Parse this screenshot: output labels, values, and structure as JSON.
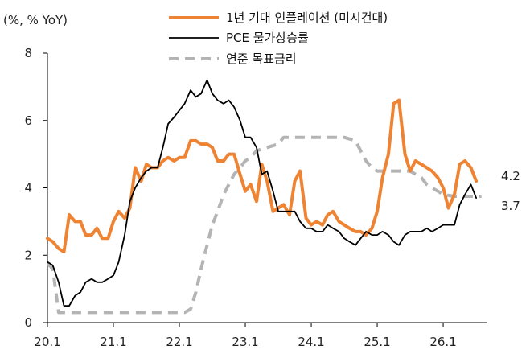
{
  "chart_data": {
    "type": "line",
    "unit_label": "(%, % YoY)",
    "x_tick_labels": [
      "20.1",
      "21.1",
      "22.1",
      "23.1",
      "24.1",
      "25.1",
      "26.1"
    ],
    "x_range": [
      2020.0,
      2026.67
    ],
    "ylim": [
      0,
      8
    ],
    "y_ticks": [
      0,
      2,
      4,
      6,
      8
    ],
    "grid": false,
    "legend_position": "top-center",
    "series": [
      {
        "name": "1년 기대 인플레이션 (미시건대)",
        "color": "#EE8433",
        "style": "solid",
        "width": 4,
        "points": [
          [
            2020.0,
            2.5
          ],
          [
            2020.08,
            2.4
          ],
          [
            2020.17,
            2.2
          ],
          [
            2020.25,
            2.1
          ],
          [
            2020.33,
            3.2
          ],
          [
            2020.42,
            3.0
          ],
          [
            2020.5,
            3.0
          ],
          [
            2020.58,
            2.6
          ],
          [
            2020.67,
            2.6
          ],
          [
            2020.75,
            2.8
          ],
          [
            2020.83,
            2.5
          ],
          [
            2020.92,
            2.5
          ],
          [
            2021.0,
            3.0
          ],
          [
            2021.08,
            3.3
          ],
          [
            2021.17,
            3.1
          ],
          [
            2021.25,
            3.4
          ],
          [
            2021.33,
            4.6
          ],
          [
            2021.42,
            4.2
          ],
          [
            2021.5,
            4.7
          ],
          [
            2021.58,
            4.6
          ],
          [
            2021.67,
            4.6
          ],
          [
            2021.75,
            4.8
          ],
          [
            2021.83,
            4.9
          ],
          [
            2021.92,
            4.8
          ],
          [
            2022.0,
            4.9
          ],
          [
            2022.08,
            4.9
          ],
          [
            2022.17,
            5.4
          ],
          [
            2022.25,
            5.4
          ],
          [
            2022.33,
            5.3
          ],
          [
            2022.42,
            5.3
          ],
          [
            2022.5,
            5.2
          ],
          [
            2022.58,
            4.8
          ],
          [
            2022.67,
            4.8
          ],
          [
            2022.75,
            5.0
          ],
          [
            2022.83,
            5.0
          ],
          [
            2022.92,
            4.4
          ],
          [
            2023.0,
            3.9
          ],
          [
            2023.08,
            4.1
          ],
          [
            2023.17,
            3.6
          ],
          [
            2023.25,
            4.7
          ],
          [
            2023.33,
            4.2
          ],
          [
            2023.42,
            3.3
          ],
          [
            2023.5,
            3.4
          ],
          [
            2023.58,
            3.5
          ],
          [
            2023.67,
            3.2
          ],
          [
            2023.75,
            4.2
          ],
          [
            2023.83,
            4.5
          ],
          [
            2023.92,
            3.1
          ],
          [
            2024.0,
            2.9
          ],
          [
            2024.08,
            3.0
          ],
          [
            2024.17,
            2.9
          ],
          [
            2024.25,
            3.2
          ],
          [
            2024.33,
            3.3
          ],
          [
            2024.42,
            3.0
          ],
          [
            2024.5,
            2.9
          ],
          [
            2024.58,
            2.8
          ],
          [
            2024.67,
            2.7
          ],
          [
            2024.75,
            2.7
          ],
          [
            2024.83,
            2.6
          ],
          [
            2024.92,
            2.8
          ],
          [
            2025.0,
            3.3
          ],
          [
            2025.08,
            4.3
          ],
          [
            2025.17,
            5.0
          ],
          [
            2025.25,
            6.5
          ],
          [
            2025.33,
            6.6
          ],
          [
            2025.42,
            5.0
          ],
          [
            2025.5,
            4.5
          ],
          [
            2025.58,
            4.8
          ],
          [
            2025.67,
            4.7
          ],
          [
            2025.75,
            4.6
          ],
          [
            2025.83,
            4.5
          ],
          [
            2025.92,
            4.3
          ],
          [
            2026.0,
            4.0
          ],
          [
            2026.08,
            3.4
          ],
          [
            2026.17,
            3.8
          ],
          [
            2026.25,
            4.7
          ],
          [
            2026.33,
            4.8
          ],
          [
            2026.42,
            4.6
          ],
          [
            2026.5,
            4.2
          ]
        ],
        "end_label": "4.2"
      },
      {
        "name": "PCE 물가상승률",
        "color": "#000000",
        "style": "solid",
        "width": 1.8,
        "points": [
          [
            2020.0,
            1.8
          ],
          [
            2020.08,
            1.7
          ],
          [
            2020.17,
            1.2
          ],
          [
            2020.25,
            0.5
          ],
          [
            2020.33,
            0.5
          ],
          [
            2020.42,
            0.8
          ],
          [
            2020.5,
            0.9
          ],
          [
            2020.58,
            1.2
          ],
          [
            2020.67,
            1.3
          ],
          [
            2020.75,
            1.2
          ],
          [
            2020.83,
            1.2
          ],
          [
            2020.92,
            1.3
          ],
          [
            2021.0,
            1.4
          ],
          [
            2021.08,
            1.8
          ],
          [
            2021.17,
            2.6
          ],
          [
            2021.25,
            3.6
          ],
          [
            2021.33,
            4.0
          ],
          [
            2021.42,
            4.3
          ],
          [
            2021.5,
            4.5
          ],
          [
            2021.58,
            4.6
          ],
          [
            2021.67,
            4.6
          ],
          [
            2021.75,
            5.2
          ],
          [
            2021.83,
            5.9
          ],
          [
            2021.92,
            6.1
          ],
          [
            2022.0,
            6.3
          ],
          [
            2022.08,
            6.5
          ],
          [
            2022.17,
            6.9
          ],
          [
            2022.25,
            6.7
          ],
          [
            2022.33,
            6.8
          ],
          [
            2022.42,
            7.2
          ],
          [
            2022.5,
            6.8
          ],
          [
            2022.58,
            6.6
          ],
          [
            2022.67,
            6.5
          ],
          [
            2022.75,
            6.6
          ],
          [
            2022.83,
            6.4
          ],
          [
            2022.92,
            6.0
          ],
          [
            2023.0,
            5.5
          ],
          [
            2023.08,
            5.5
          ],
          [
            2023.17,
            5.2
          ],
          [
            2023.25,
            4.4
          ],
          [
            2023.33,
            4.5
          ],
          [
            2023.42,
            3.9
          ],
          [
            2023.5,
            3.3
          ],
          [
            2023.58,
            3.3
          ],
          [
            2023.67,
            3.3
          ],
          [
            2023.75,
            3.3
          ],
          [
            2023.83,
            3.0
          ],
          [
            2023.92,
            2.8
          ],
          [
            2024.0,
            2.8
          ],
          [
            2024.08,
            2.7
          ],
          [
            2024.17,
            2.7
          ],
          [
            2024.25,
            2.9
          ],
          [
            2024.33,
            2.8
          ],
          [
            2024.42,
            2.7
          ],
          [
            2024.5,
            2.5
          ],
          [
            2024.58,
            2.4
          ],
          [
            2024.67,
            2.3
          ],
          [
            2024.75,
            2.5
          ],
          [
            2024.83,
            2.7
          ],
          [
            2024.92,
            2.6
          ],
          [
            2025.0,
            2.6
          ],
          [
            2025.08,
            2.7
          ],
          [
            2025.17,
            2.6
          ],
          [
            2025.25,
            2.4
          ],
          [
            2025.33,
            2.3
          ],
          [
            2025.42,
            2.6
          ],
          [
            2025.5,
            2.7
          ],
          [
            2025.58,
            2.7
          ],
          [
            2025.67,
            2.7
          ],
          [
            2025.75,
            2.8
          ],
          [
            2025.83,
            2.7
          ],
          [
            2025.92,
            2.8
          ],
          [
            2026.0,
            2.9
          ],
          [
            2026.08,
            2.9
          ],
          [
            2026.17,
            2.9
          ],
          [
            2026.25,
            3.5
          ],
          [
            2026.33,
            3.8
          ],
          [
            2026.42,
            4.1
          ],
          [
            2026.5,
            3.7
          ]
        ],
        "end_label": "3.7"
      },
      {
        "name": "연준 목표금리",
        "color": "#B4B4B4",
        "style": "dashed",
        "width": 4,
        "points": [
          [
            2020.0,
            1.75
          ],
          [
            2020.08,
            1.6
          ],
          [
            2020.17,
            0.3
          ],
          [
            2020.5,
            0.3
          ],
          [
            2021.0,
            0.3
          ],
          [
            2021.5,
            0.3
          ],
          [
            2022.0,
            0.3
          ],
          [
            2022.08,
            0.3
          ],
          [
            2022.17,
            0.4
          ],
          [
            2022.25,
            0.9
          ],
          [
            2022.33,
            1.6
          ],
          [
            2022.42,
            2.3
          ],
          [
            2022.5,
            2.9
          ],
          [
            2022.58,
            3.3
          ],
          [
            2022.67,
            3.8
          ],
          [
            2022.75,
            4.1
          ],
          [
            2022.83,
            4.4
          ],
          [
            2022.92,
            4.6
          ],
          [
            2023.0,
            4.8
          ],
          [
            2023.08,
            4.9
          ],
          [
            2023.17,
            5.1
          ],
          [
            2023.33,
            5.2
          ],
          [
            2023.5,
            5.3
          ],
          [
            2023.58,
            5.5
          ],
          [
            2024.0,
            5.5
          ],
          [
            2024.5,
            5.5
          ],
          [
            2024.67,
            5.4
          ],
          [
            2024.75,
            5.1
          ],
          [
            2024.83,
            4.8
          ],
          [
            2024.92,
            4.6
          ],
          [
            2025.0,
            4.5
          ],
          [
            2025.5,
            4.5
          ],
          [
            2025.67,
            4.3
          ],
          [
            2025.75,
            4.1
          ],
          [
            2025.83,
            4.0
          ],
          [
            2025.92,
            3.9
          ],
          [
            2026.0,
            3.8
          ],
          [
            2026.17,
            3.75
          ],
          [
            2026.5,
            3.75
          ],
          [
            2026.58,
            3.75
          ]
        ]
      }
    ]
  }
}
